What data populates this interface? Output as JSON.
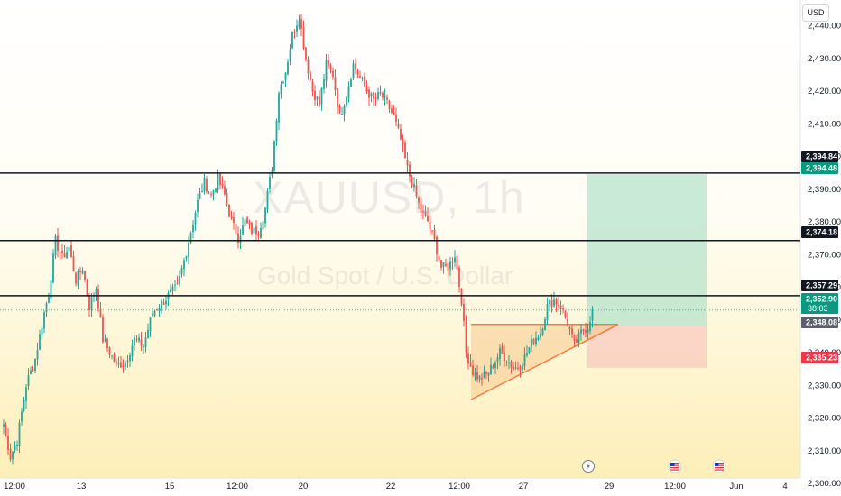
{
  "symbol": "XAUUSD",
  "interval_text": ", 1h",
  "description": "Gold Spot / U.S. Dollar",
  "currency": "USD",
  "colors": {
    "up": "#26a69a",
    "down": "#ef5350",
    "bg_top": "#ffffff",
    "bg_bottom": "#fdefb8",
    "level_line": "#131722",
    "target_zone": "#b7e3cc",
    "stop_zone": "#f9c9bf",
    "triangle_fill": "#f7c58a",
    "triangle_line": "#f57c3d"
  },
  "chart_data": {
    "type": "candlestick",
    "ylim": [
      2296,
      2450
    ],
    "y_ticks": [
      "2,300.00",
      "2,310.00",
      "2,320.00",
      "2,330.00",
      "2,340.00",
      "2,350.00",
      "2,360.00",
      "2,370.00",
      "2,380.00",
      "2,390.00",
      "2,400.00",
      "2,410.00",
      "2,420.00",
      "2,430.00",
      "2,440.00"
    ],
    "x_ticks": [
      "12:00",
      "13",
      "15",
      "12:00",
      "20",
      "22",
      "12:00",
      "27",
      "29",
      "12:00",
      "Jun",
      "4"
    ],
    "close_path": [
      [
        0,
        2318
      ],
      [
        3,
        2308
      ],
      [
        6,
        2313
      ],
      [
        10,
        2330
      ],
      [
        14,
        2338
      ],
      [
        18,
        2352
      ],
      [
        20,
        2358
      ],
      [
        23,
        2374
      ],
      [
        26,
        2369
      ],
      [
        29,
        2372
      ],
      [
        32,
        2362
      ],
      [
        35,
        2366
      ],
      [
        38,
        2354
      ],
      [
        41,
        2360
      ],
      [
        44,
        2344
      ],
      [
        47,
        2340
      ],
      [
        50,
        2336
      ],
      [
        54,
        2337
      ],
      [
        58,
        2344
      ],
      [
        62,
        2342
      ],
      [
        66,
        2352
      ],
      [
        70,
        2355
      ],
      [
        74,
        2358
      ],
      [
        77,
        2360
      ],
      [
        80,
        2368
      ],
      [
        83,
        2377
      ],
      [
        86,
        2386
      ],
      [
        89,
        2392
      ],
      [
        92,
        2388
      ],
      [
        95,
        2393
      ],
      [
        98,
        2388
      ],
      [
        101,
        2380
      ],
      [
        104,
        2375
      ],
      [
        107,
        2380
      ],
      [
        110,
        2377
      ],
      [
        113,
        2377
      ],
      [
        116,
        2384
      ],
      [
        119,
        2397
      ],
      [
        122,
        2420
      ],
      [
        125,
        2426
      ],
      [
        128,
        2437
      ],
      [
        131,
        2443
      ],
      [
        134,
        2430
      ],
      [
        137,
        2420
      ],
      [
        140,
        2416
      ],
      [
        143,
        2428
      ],
      [
        146,
        2425
      ],
      [
        149,
        2412
      ],
      [
        152,
        2419
      ],
      [
        155,
        2428
      ],
      [
        158,
        2424
      ],
      [
        161,
        2420
      ],
      [
        164,
        2417
      ],
      [
        167,
        2419
      ],
      [
        170,
        2416
      ],
      [
        173,
        2412
      ],
      [
        176,
        2405
      ],
      [
        179,
        2396
      ],
      [
        182,
        2390
      ],
      [
        185,
        2383
      ],
      [
        188,
        2380
      ],
      [
        191,
        2374
      ],
      [
        194,
        2366
      ],
      [
        197,
        2366
      ],
      [
        200,
        2370
      ],
      [
        203,
        2356
      ],
      [
        205,
        2340
      ],
      [
        208,
        2334
      ],
      [
        211,
        2332
      ],
      [
        214,
        2333
      ],
      [
        217,
        2336
      ],
      [
        220,
        2340
      ],
      [
        223,
        2338
      ],
      [
        226,
        2335
      ],
      [
        229,
        2336
      ],
      [
        232,
        2340
      ],
      [
        235,
        2344
      ],
      [
        238,
        2346
      ],
      [
        241,
        2354
      ],
      [
        244,
        2356
      ],
      [
        247,
        2354
      ],
      [
        250,
        2349
      ],
      [
        253,
        2342
      ],
      [
        256,
        2346
      ],
      [
        259,
        2348
      ],
      [
        261,
        2352.9
      ]
    ],
    "last_price": 2352.9,
    "countdown": "38:03",
    "horizontal_levels": [
      2394.84,
      2374.18,
      2357.29
    ],
    "price_labels": [
      {
        "value": 2394.84,
        "text": "2,394.84",
        "color": "#131722"
      },
      {
        "value": 2394.48,
        "text": "2,394.48",
        "color": "#089981"
      },
      {
        "value": 2374.18,
        "text": "2,374.18",
        "color": "#131722"
      },
      {
        "value": 2357.29,
        "text": "2,357.29",
        "color": "#131722"
      },
      {
        "value": 2352.9,
        "text": "2,352.90",
        "color": "#089981"
      },
      {
        "value": 2348.08,
        "text": "2,348.08",
        "color": "#5d606b"
      },
      {
        "value": 2335.23,
        "text": "2,335.23",
        "color": "#f23645"
      }
    ],
    "long_position": {
      "entry": 2348.08,
      "target": 2394.48,
      "stop": 2335.23
    },
    "triangle": {
      "top": 2348.5,
      "low_left": 2325.5,
      "apex": 2348.5
    }
  }
}
